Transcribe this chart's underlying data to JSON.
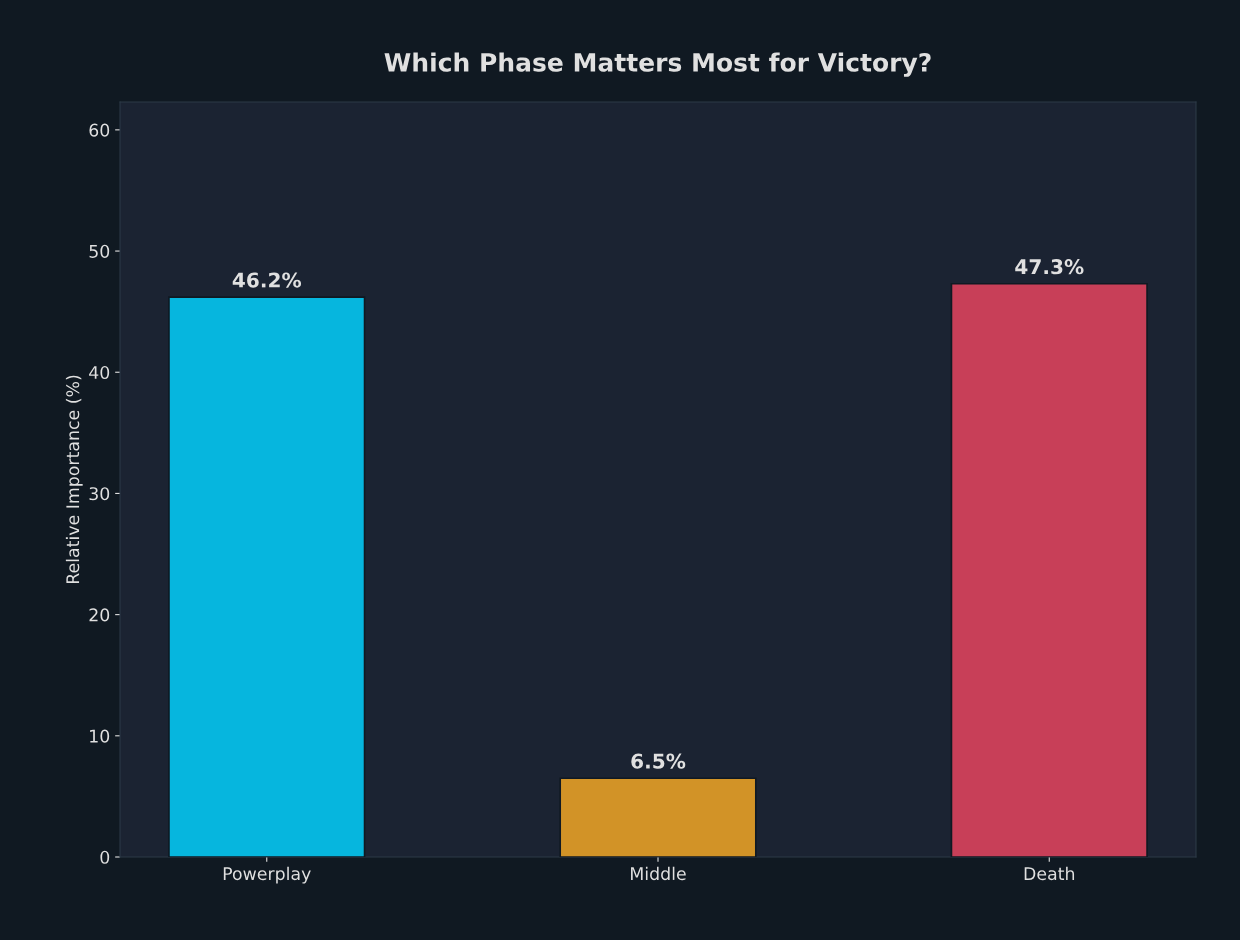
{
  "chart_data": {
    "type": "bar",
    "title": "Which Phase Matters Most for Victory?",
    "ylabel": "Relative Importance (%)",
    "categories": [
      "Powerplay",
      "Middle",
      "Death"
    ],
    "values": [
      46.2,
      6.5,
      47.3
    ],
    "colors": [
      "#06b6de",
      "#d29327",
      "#c83f58"
    ],
    "value_labels": [
      "46.2%",
      "6.5%",
      "47.3%"
    ],
    "ylim": [
      0,
      62.3
    ],
    "yticks": [
      0,
      10,
      20,
      30,
      40,
      50,
      60
    ],
    "grid": false,
    "legend": false
  }
}
